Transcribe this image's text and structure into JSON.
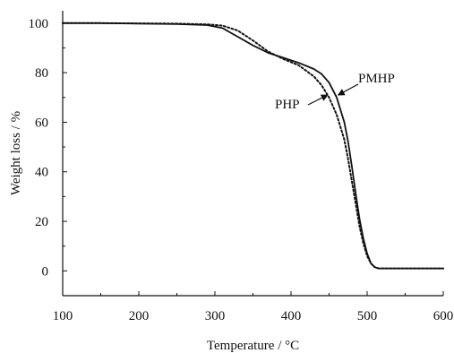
{
  "chart_data": {
    "type": "line",
    "xlabel": "Temperature / °C",
    "ylabel": "Weight loss / %",
    "xlim": [
      100,
      600
    ],
    "ylim": [
      -10,
      105
    ],
    "xticks": [
      100,
      200,
      300,
      400,
      500,
      600
    ],
    "yticks": [
      0,
      20,
      40,
      60,
      80,
      100
    ],
    "grid": false,
    "legend": "inline labels with arrows",
    "series": [
      {
        "name": "PMHP",
        "line_style": "solid",
        "x": [
          100,
          150,
          200,
          250,
          290,
          310,
          330,
          350,
          370,
          390,
          410,
          430,
          440,
          450,
          460,
          470,
          475,
          480,
          485,
          490,
          495,
          500,
          505,
          510,
          515,
          520,
          540,
          560,
          580,
          600
        ],
        "y": [
          100,
          100,
          99.8,
          99.6,
          99.2,
          98,
          94.5,
          91,
          88,
          86,
          84,
          81.5,
          79.5,
          76,
          70,
          60,
          52,
          42,
          31,
          21,
          13,
          7,
          3,
          1.5,
          1,
          1,
          1,
          1,
          1,
          1
        ]
      },
      {
        "name": "PHP",
        "line_style": "dotted",
        "x": [
          100,
          150,
          200,
          250,
          290,
          310,
          330,
          350,
          370,
          390,
          410,
          430,
          440,
          450,
          460,
          470,
          475,
          480,
          485,
          490,
          495,
          500,
          505,
          510,
          515,
          520,
          540,
          560,
          580,
          600
        ],
        "y": [
          100,
          100,
          99.9,
          99.8,
          99.5,
          99,
          97,
          93,
          88.5,
          85.5,
          83,
          78.5,
          75,
          70,
          63,
          53,
          45,
          36,
          27,
          18,
          11,
          6,
          3,
          1.5,
          1,
          1,
          1,
          1,
          1,
          1
        ]
      }
    ],
    "annotations": [
      {
        "text": "PMHP",
        "points_to_x": 462,
        "points_to_y": 71
      },
      {
        "text": "PHP",
        "points_to_x": 448,
        "points_to_y": 71
      }
    ]
  }
}
